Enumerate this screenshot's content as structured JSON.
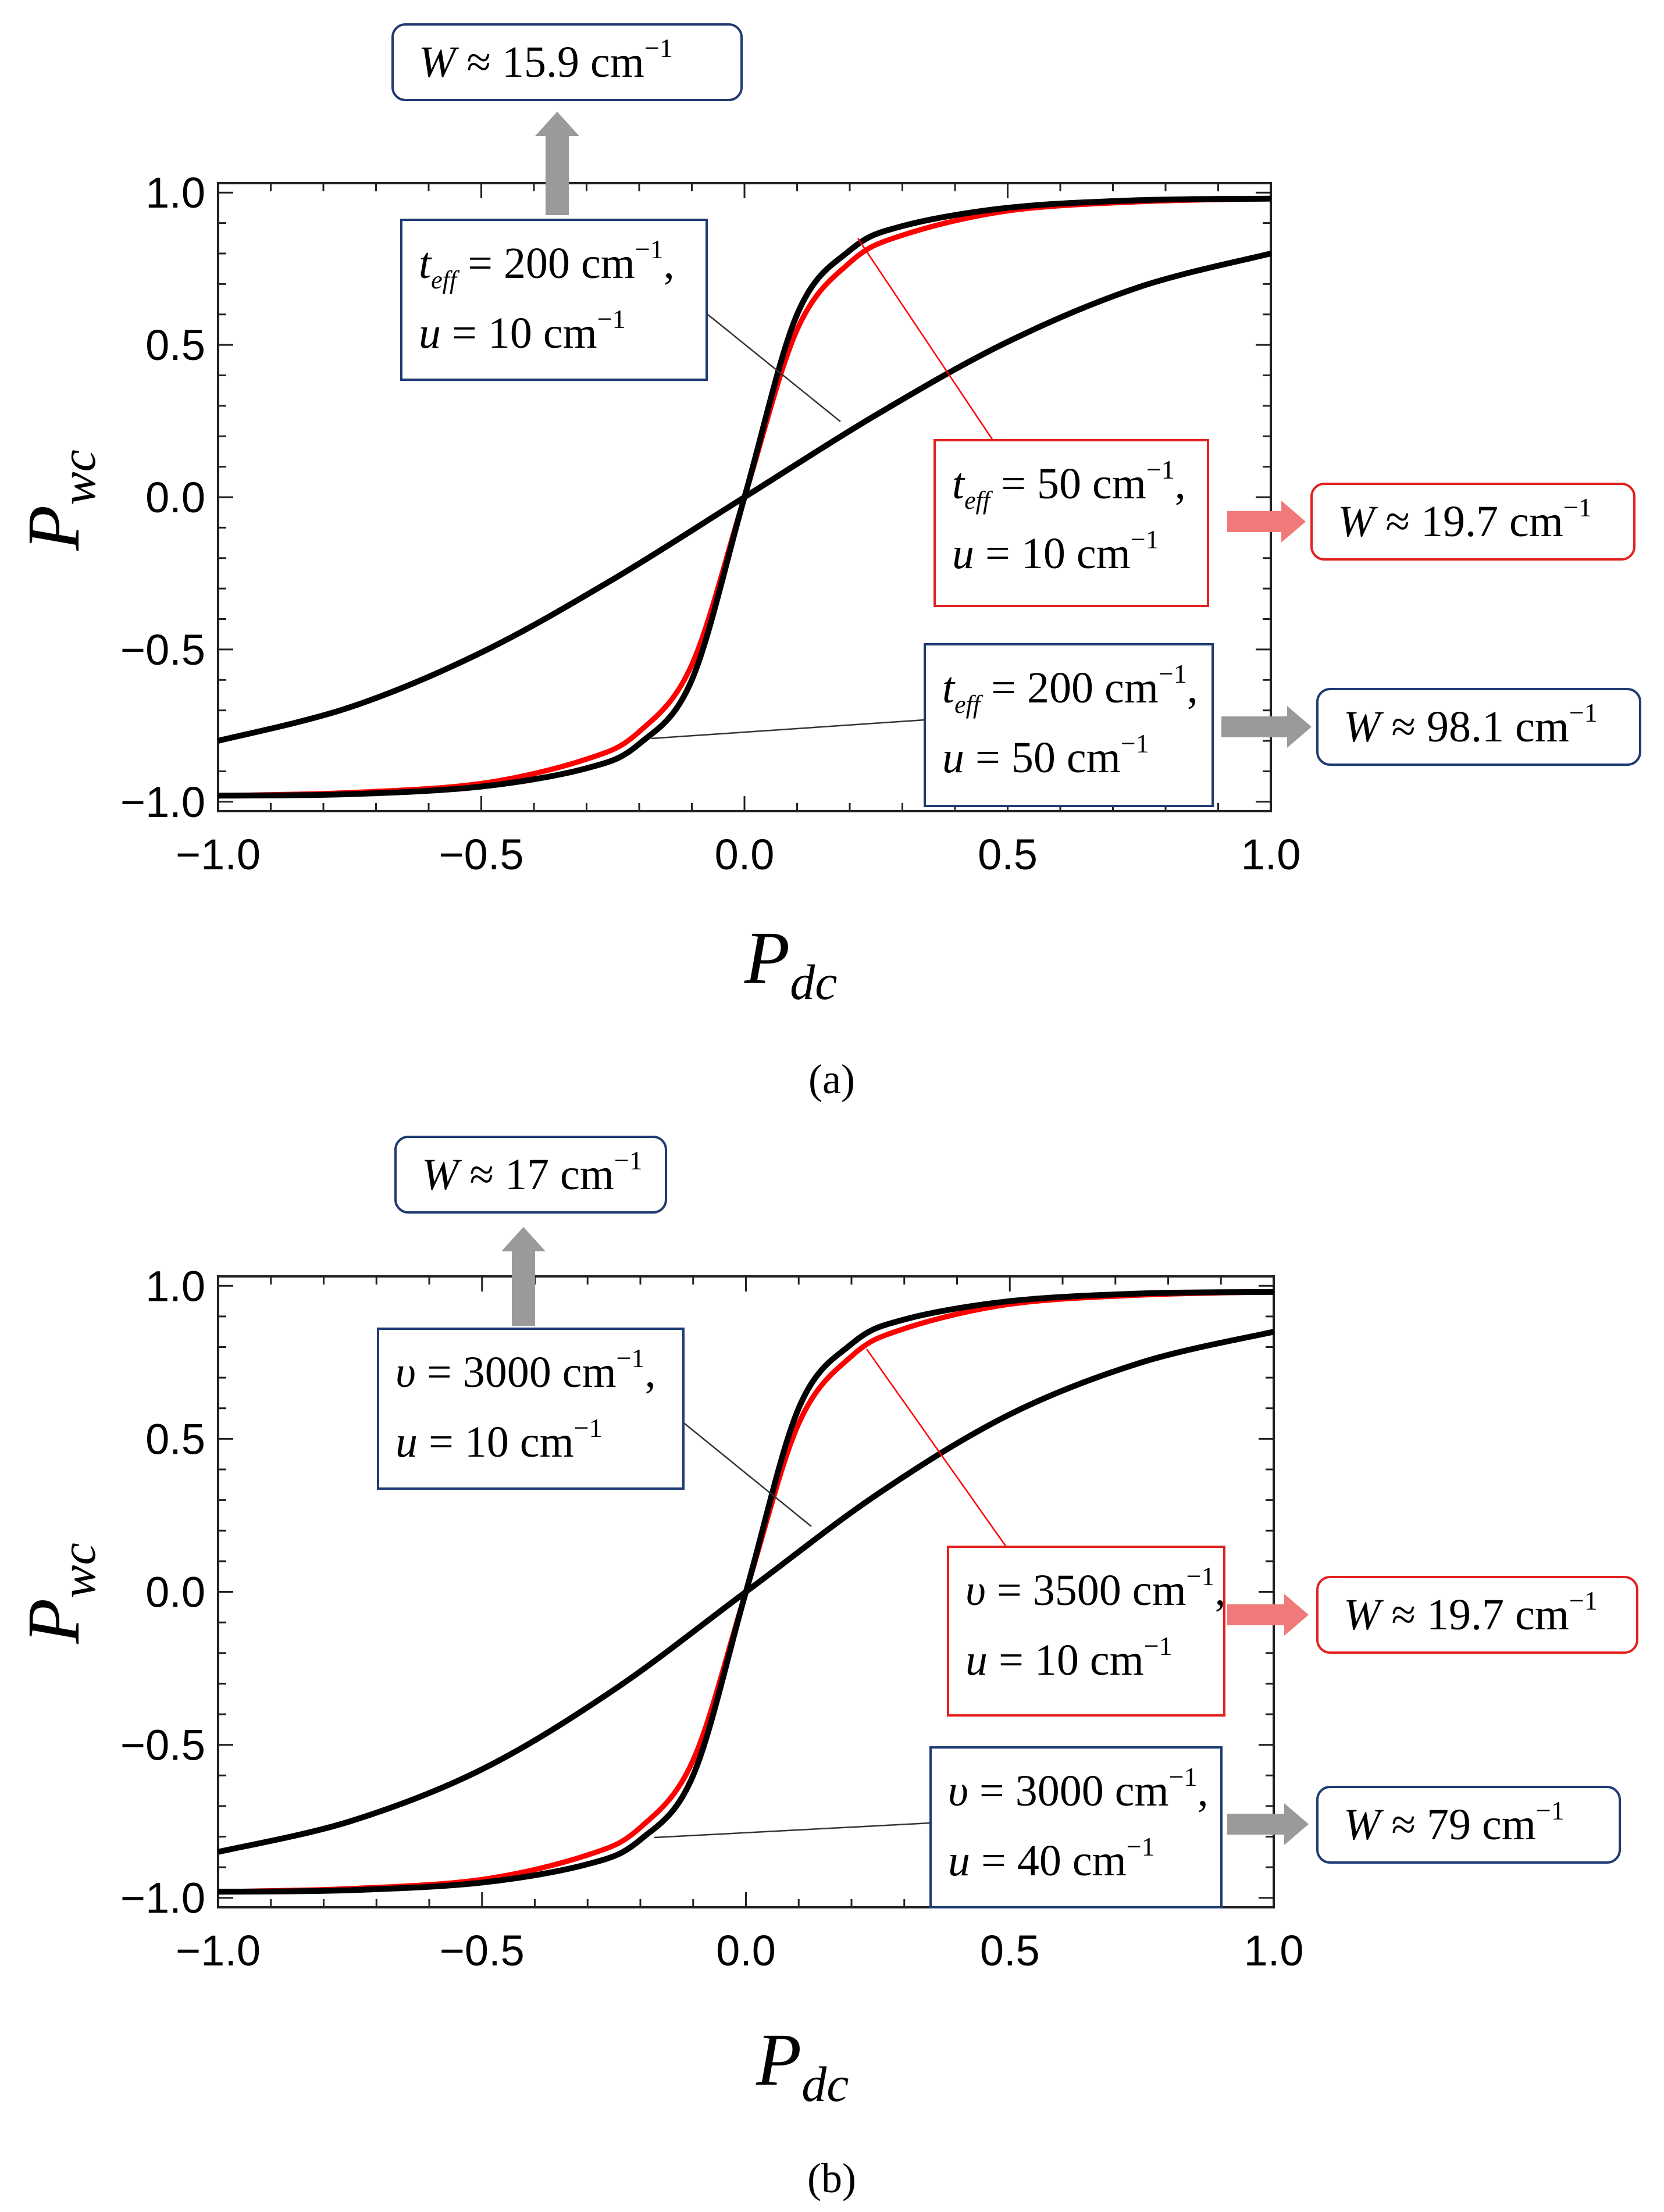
{
  "chart_data": [
    {
      "type": "line",
      "panel_label": "(a)",
      "xlabel": "P_dc",
      "ylabel": "P_wc",
      "xlabel_main": "P",
      "xlabel_sub": "dc",
      "ylabel_main": "P",
      "ylabel_sub": "wc",
      "xlim": [
        -1.0,
        1.0
      ],
      "ylim": [
        -1.0,
        1.0
      ],
      "xticks": [
        "−1.0",
        "−0.5",
        "0.0",
        "0.5",
        "1.0"
      ],
      "yticks": [
        "1.0",
        "0.5",
        "0.0",
        "−0.5",
        "−1.0"
      ],
      "series": [
        {
          "name": "t_eff = 200 cm−1, u = 10 cm−1",
          "color": "#000000",
          "x": [
            -1,
            -0.75,
            -0.5,
            -0.25,
            0,
            0.25,
            0.5,
            0.75,
            1
          ],
          "y": [
            -0.8,
            -0.69,
            -0.51,
            -0.27,
            0,
            0.27,
            0.51,
            0.69,
            0.8
          ]
        },
        {
          "name": "t_eff = 50 cm−1, u = 10 cm−1",
          "color": "#ff0000",
          "x": [
            -1,
            -0.75,
            -0.5,
            -0.3,
            -0.2,
            -0.1,
            0,
            0.1,
            0.2,
            0.3,
            0.5,
            0.75,
            1
          ],
          "y": [
            -0.98,
            -0.97,
            -0.94,
            -0.86,
            -0.77,
            -0.55,
            0,
            0.55,
            0.77,
            0.86,
            0.94,
            0.97,
            0.98
          ]
        },
        {
          "name": "t_eff = 200 cm−1, u = 50 cm−1",
          "color": "#000000",
          "x": [
            -1,
            -0.75,
            -0.5,
            -0.3,
            -0.2,
            -0.1,
            0,
            0.1,
            0.2,
            0.3,
            0.5,
            0.75,
            1
          ],
          "y": [
            -0.98,
            -0.975,
            -0.95,
            -0.89,
            -0.81,
            -0.6,
            0,
            0.6,
            0.81,
            0.89,
            0.95,
            0.975,
            0.98
          ]
        }
      ],
      "annotations": [
        {
          "id": "a1",
          "line1_sym": "t",
          "line1_sub": "eff",
          "line1_rest": " = 200 cm",
          "line1_sup": "−1",
          "line1_end": ",",
          "line2_sym": "u",
          "line2_rest": " = 10 cm",
          "line2_sup": "−1",
          "result_sym": "W",
          "result_rest": " ≈ 15.9 cm",
          "result_sup": "−1"
        },
        {
          "id": "a2",
          "line1_sym": "t",
          "line1_sub": "eff",
          "line1_rest": " = 50 cm",
          "line1_sup": "−1",
          "line1_end": ",",
          "line2_sym": "u",
          "line2_rest": " = 10 cm",
          "line2_sup": "−1",
          "result_sym": "W",
          "result_rest": " ≈ 19.7 cm",
          "result_sup": "−1"
        },
        {
          "id": "a3",
          "line1_sym": "t",
          "line1_sub": "eff",
          "line1_rest": " = 200 cm",
          "line1_sup": "−1",
          "line1_end": ",",
          "line2_sym": "u",
          "line2_rest": " = 50 cm",
          "line2_sup": "−1",
          "result_sym": "W",
          "result_rest": " ≈ 98.1 cm",
          "result_sup": "−1"
        }
      ]
    },
    {
      "type": "line",
      "panel_label": "(b)",
      "xlabel": "P_dc",
      "ylabel": "P_wc",
      "xlabel_main": "P",
      "xlabel_sub": "dc",
      "ylabel_main": "P",
      "ylabel_sub": "wc",
      "xlim": [
        -1.0,
        1.0
      ],
      "ylim": [
        -1.0,
        1.0
      ],
      "xticks": [
        "−1.0",
        "−0.5",
        "0.0",
        "0.5",
        "1.0"
      ],
      "yticks": [
        "1.0",
        "0.5",
        "0.0",
        "−0.5",
        "−1.0"
      ],
      "series": [
        {
          "name": "υ = 3000 cm−1, u = 10 cm−1",
          "color": "#000000",
          "x": [
            -1,
            -0.75,
            -0.5,
            -0.25,
            0,
            0.25,
            0.5,
            0.75,
            1
          ],
          "y": [
            -0.85,
            -0.75,
            -0.58,
            -0.32,
            0,
            0.32,
            0.58,
            0.75,
            0.85
          ]
        },
        {
          "name": "υ = 3500 cm−1, u = 10 cm−1",
          "color": "#ff0000",
          "x": [
            -1,
            -0.75,
            -0.5,
            -0.3,
            -0.2,
            -0.1,
            0,
            0.1,
            0.2,
            0.3,
            0.5,
            0.75,
            1
          ],
          "y": [
            -0.98,
            -0.97,
            -0.94,
            -0.86,
            -0.77,
            -0.55,
            0,
            0.55,
            0.77,
            0.86,
            0.94,
            0.97,
            0.98
          ]
        },
        {
          "name": "υ = 3000 cm−1, u = 40 cm−1",
          "color": "#000000",
          "x": [
            -1,
            -0.75,
            -0.5,
            -0.3,
            -0.2,
            -0.1,
            0,
            0.1,
            0.2,
            0.3,
            0.5,
            0.75,
            1
          ],
          "y": [
            -0.98,
            -0.975,
            -0.95,
            -0.89,
            -0.81,
            -0.6,
            0,
            0.6,
            0.81,
            0.89,
            0.95,
            0.975,
            0.98
          ]
        }
      ],
      "annotations": [
        {
          "id": "b1",
          "line1_sym": "υ",
          "line1_sub": "",
          "line1_rest": " = 3000 cm",
          "line1_sup": "−1",
          "line1_end": ",",
          "line2_sym": "u",
          "line2_rest": " = 10 cm",
          "line2_sup": "−1",
          "result_sym": "W",
          "result_rest": " ≈ 17 cm",
          "result_sup": "−1"
        },
        {
          "id": "b2",
          "line1_sym": "υ",
          "line1_sub": "",
          "line1_rest": " = 3500 cm",
          "line1_sup": "−1",
          "line1_end": ",",
          "line2_sym": "u",
          "line2_rest": " = 10 cm",
          "line2_sup": "−1",
          "result_sym": "W",
          "result_rest": " ≈ 19.7 cm",
          "result_sup": "−1"
        },
        {
          "id": "b3",
          "line1_sym": "υ",
          "line1_sub": "",
          "line1_rest": " = 3000 cm",
          "line1_sup": "−1",
          "line1_end": ",",
          "line2_sym": "u",
          "line2_rest": " = 40 cm",
          "line2_sup": "−1",
          "result_sym": "W",
          "result_rest": " ≈ 79 cm",
          "result_sup": "−1"
        }
      ]
    }
  ],
  "colors": {
    "box_blue": "#1f3b73",
    "box_red": "#e32121",
    "arrow_gray": "#9a9a9a",
    "arrow_red": "#f07a7a",
    "axis_black": "#000000"
  }
}
